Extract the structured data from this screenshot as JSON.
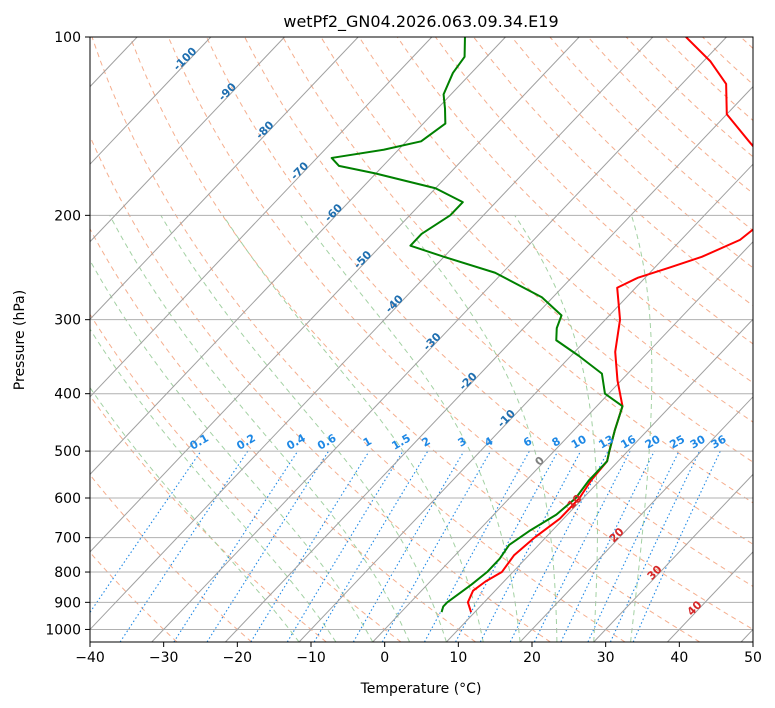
{
  "chart_data": {
    "type": "line",
    "title": "wetPf2_GN04.2026.063.09.34.E19",
    "xlabel": "Temperature (°C)",
    "ylabel": "Pressure (hPa)",
    "xlim": [
      -40,
      50
    ],
    "ylim": [
      1050,
      100
    ],
    "y_scale": "log",
    "grid": true,
    "x_ticks": [
      "−40",
      "−30",
      "−20",
      "−10",
      "0",
      "10",
      "20",
      "30",
      "40",
      "50"
    ],
    "y_ticks": [
      "100",
      "200",
      "300",
      "400",
      "500",
      "600",
      "700",
      "800",
      "900",
      "1000"
    ],
    "series": [
      {
        "key": "temperature",
        "color": "#ff0000",
        "points": [
          {
            "p": 935,
            "t": 9.5
          },
          {
            "p": 900,
            "t": 7.8
          },
          {
            "p": 860,
            "t": 7.0
          },
          {
            "p": 830,
            "t": 7.5
          },
          {
            "p": 800,
            "t": 8.5
          },
          {
            "p": 750,
            "t": 8.0
          },
          {
            "p": 700,
            "t": 8.5
          },
          {
            "p": 650,
            "t": 9.5
          },
          {
            "p": 600,
            "t": 9.5
          },
          {
            "p": 560,
            "t": 8.8
          },
          {
            "p": 520,
            "t": 8.5
          },
          {
            "p": 500,
            "t": 7.5
          },
          {
            "p": 460,
            "t": 5.5
          },
          {
            "p": 420,
            "t": 3.5
          },
          {
            "p": 380,
            "t": -0.5
          },
          {
            "p": 340,
            "t": -4.5
          },
          {
            "p": 300,
            "t": -8.0
          },
          {
            "p": 280,
            "t": -10.5
          },
          {
            "p": 265,
            "t": -12.5
          },
          {
            "p": 255,
            "t": -11.0
          },
          {
            "p": 245,
            "t": -8.0
          },
          {
            "p": 235,
            "t": -5.0
          },
          {
            "p": 220,
            "t": -2.0
          },
          {
            "p": 200,
            "t": -1.0
          },
          {
            "p": 180,
            "t": -3.0
          },
          {
            "p": 165,
            "t": -7.5
          },
          {
            "p": 150,
            "t": -13.5
          },
          {
            "p": 135,
            "t": -20.0
          },
          {
            "p": 120,
            "t": -24.0
          },
          {
            "p": 110,
            "t": -29.0
          },
          {
            "p": 100,
            "t": -35.5
          }
        ]
      },
      {
        "key": "dewpoint",
        "color": "#008000",
        "points": [
          {
            "p": 935,
            "t": 5.5
          },
          {
            "p": 915,
            "t": 5.0
          },
          {
            "p": 900,
            "t": 5.0
          },
          {
            "p": 870,
            "t": 5.5
          },
          {
            "p": 840,
            "t": 6.0
          },
          {
            "p": 800,
            "t": 6.5
          },
          {
            "p": 760,
            "t": 6.5
          },
          {
            "p": 720,
            "t": 6.0
          },
          {
            "p": 680,
            "t": 7.0
          },
          {
            "p": 640,
            "t": 8.5
          },
          {
            "p": 600,
            "t": 9.0
          },
          {
            "p": 560,
            "t": 8.5
          },
          {
            "p": 520,
            "t": 8.5
          },
          {
            "p": 500,
            "t": 7.5
          },
          {
            "p": 460,
            "t": 5.5
          },
          {
            "p": 420,
            "t": 3.5
          },
          {
            "p": 400,
            "t": -0.5
          },
          {
            "p": 370,
            "t": -3.5
          },
          {
            "p": 345,
            "t": -9.0
          },
          {
            "p": 325,
            "t": -14.0
          },
          {
            "p": 310,
            "t": -15.5
          },
          {
            "p": 295,
            "t": -16.5
          },
          {
            "p": 275,
            "t": -21.5
          },
          {
            "p": 250,
            "t": -31.0
          },
          {
            "p": 235,
            "t": -40.0
          },
          {
            "p": 225,
            "t": -46.0
          },
          {
            "p": 215,
            "t": -46.0
          },
          {
            "p": 200,
            "t": -44.5
          },
          {
            "p": 190,
            "t": -44.5
          },
          {
            "p": 180,
            "t": -50.0
          },
          {
            "p": 170,
            "t": -60.0
          },
          {
            "p": 165,
            "t": -66.0
          },
          {
            "p": 160,
            "t": -68.0
          },
          {
            "p": 155,
            "t": -62.0
          },
          {
            "p": 150,
            "t": -58.0
          },
          {
            "p": 140,
            "t": -57.0
          },
          {
            "p": 132,
            "t": -59.0
          },
          {
            "p": 125,
            "t": -61.0
          },
          {
            "p": 115,
            "t": -62.5
          },
          {
            "p": 108,
            "t": -63.0
          },
          {
            "p": 100,
            "t": -65.5
          }
        ]
      }
    ],
    "skew_reference_lines": {
      "isotherms_step": 10,
      "dry_adiabats_theta": [
        -30,
        -20,
        -10,
        0,
        10,
        20,
        30,
        40,
        50,
        60,
        70,
        80,
        90,
        100,
        110,
        120,
        130,
        140,
        150,
        160,
        170,
        180,
        190,
        200,
        210
      ],
      "moist_adiabats_start": [
        -10,
        -5,
        0,
        5,
        10,
        15,
        20,
        25,
        30,
        35
      ],
      "mixing_ratio_lines": [
        "0.1",
        "0.2",
        "0.4",
        "0.6",
        "1",
        "1.5",
        "2",
        "3",
        "4",
        "6",
        "8",
        "10",
        "13",
        "16",
        "20",
        "25",
        "30",
        "36"
      ]
    },
    "annotations": {
      "isotherm_labels": [
        {
          "text": "-100",
          "t": -100,
          "p": 110
        },
        {
          "text": "-90",
          "t": -90,
          "p": 125
        },
        {
          "text": "-80",
          "t": -80,
          "p": 145
        },
        {
          "text": "-70",
          "t": -70,
          "p": 170
        },
        {
          "text": "-60",
          "t": -60,
          "p": 200
        },
        {
          "text": "-50",
          "t": -50,
          "p": 240
        },
        {
          "text": "-40",
          "t": -40,
          "p": 285
        },
        {
          "text": "-30",
          "t": -30,
          "p": 330
        },
        {
          "text": "-20",
          "t": -20,
          "p": 385
        },
        {
          "text": "-10",
          "t": -10,
          "p": 445
        }
      ],
      "freezing_labels": [
        {
          "text": "0",
          "t": 0,
          "p": 525,
          "color": "#808080"
        },
        {
          "text": "10",
          "t": 10,
          "p": 615,
          "color": "#d62728"
        },
        {
          "text": "20",
          "t": 20,
          "p": 700,
          "color": "#d62728"
        },
        {
          "text": "30",
          "t": 30,
          "p": 810,
          "color": "#d62728"
        },
        {
          "text": "40",
          "t": 40,
          "p": 930,
          "color": "#d62728"
        }
      ]
    },
    "colors": {
      "isobar_grid": "#b0b0b0",
      "isotherm": "#a0a0a0",
      "dry_adiabat": "#f4a582",
      "moist_adiabat": "#99cc99",
      "mixing_ratio": "#1e88e5",
      "isotherm_label": "#1f6fb0",
      "mixing_label": "#1e88e5"
    }
  }
}
